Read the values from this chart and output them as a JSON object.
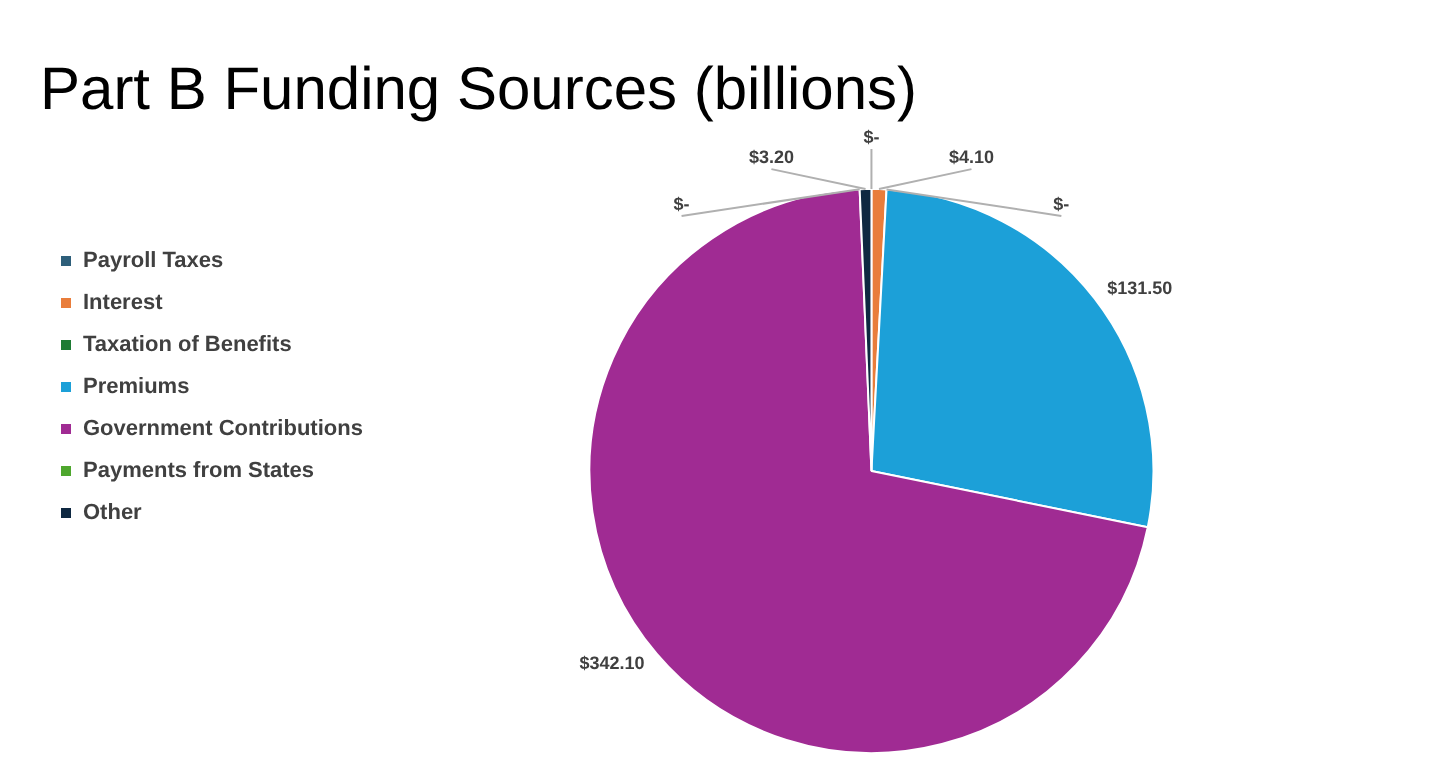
{
  "chart_data": {
    "type": "pie",
    "title": "Part B Funding Sources (billions)",
    "categories": [
      "Payroll Taxes",
      "Interest",
      "Taxation of Benefits",
      "Premiums",
      "Government Contributions",
      "Payments from States",
      "Other"
    ],
    "values": [
      0,
      4.1,
      0,
      131.5,
      342.1,
      0,
      3.2
    ],
    "value_labels": [
      "$-",
      "$4.10",
      "$-",
      "$131.50",
      "$342.10",
      "$-",
      "$3.20"
    ],
    "colors": [
      "#2e5f7a",
      "#e97d3b",
      "#1e7b34",
      "#1ca0d8",
      "#a02b93",
      "#4ea72e",
      "#0e2841"
    ],
    "legend": "left"
  }
}
